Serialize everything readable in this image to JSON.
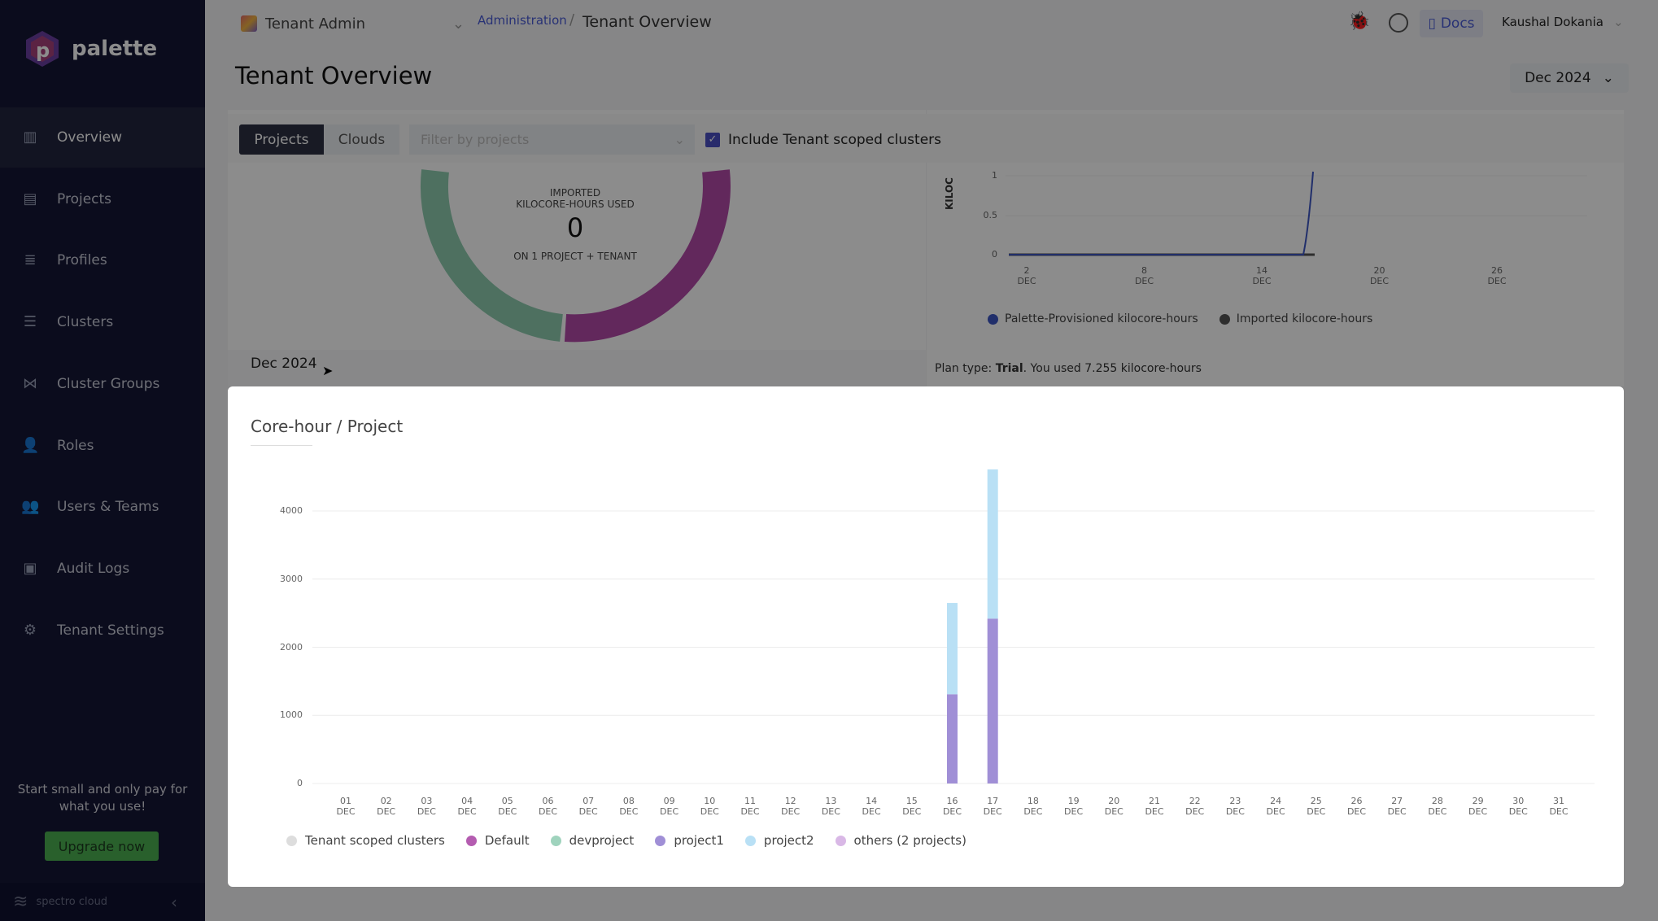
{
  "app": {
    "name": "palette",
    "footer_brand": "spectro cloud"
  },
  "sidebar": {
    "items": [
      {
        "label": "Overview",
        "icon": "chart-icon",
        "active": true
      },
      {
        "label": "Projects",
        "icon": "projects-icon"
      },
      {
        "label": "Profiles",
        "icon": "database-icon"
      },
      {
        "label": "Clusters",
        "icon": "list-icon"
      },
      {
        "label": "Cluster Groups",
        "icon": "network-icon"
      },
      {
        "label": "Roles",
        "icon": "roles-icon"
      },
      {
        "label": "Users & Teams",
        "icon": "users-icon"
      },
      {
        "label": "Audit Logs",
        "icon": "audit-icon"
      },
      {
        "label": "Tenant Settings",
        "icon": "gear-icon"
      }
    ],
    "promo": "Start small and only pay for what you use!",
    "upgrade_label": "Upgrade now"
  },
  "header": {
    "scope": "Tenant Admin",
    "breadcrumb": [
      "Administration",
      "Tenant Overview"
    ],
    "docs": "Docs",
    "user": "Kaushal Dokania"
  },
  "page": {
    "title": "Tenant Overview",
    "date_selector": "Dec 2024"
  },
  "toolbar": {
    "tabs": [
      "Projects",
      "Clouds"
    ],
    "active_tab": "Projects",
    "filter_placeholder": "Filter by projects",
    "include_tenant_label": "Include Tenant scoped clusters",
    "include_tenant_checked": true
  },
  "usage": {
    "imported_label_1": "IMPORTED",
    "imported_label_2": "KILOCORE-HOURS USED",
    "imported_value": "0",
    "scope": "ON 1 PROJECT + TENANT",
    "period": "Dec 2024"
  },
  "kilocore_chart": {
    "ylabel": "KILOC",
    "y_ticks": [
      "1",
      "0.5",
      "0"
    ],
    "x_ticks": [
      [
        "2",
        "DEC"
      ],
      [
        "8",
        "DEC"
      ],
      [
        "14",
        "DEC"
      ],
      [
        "20",
        "DEC"
      ],
      [
        "26",
        "DEC"
      ]
    ],
    "legend": [
      {
        "name": "Palette-Provisioned kilocore-hours",
        "color": "#3d56c4"
      },
      {
        "name": "Imported kilocore-hours",
        "color": "#555555"
      }
    ],
    "plan_prefix": "Plan type: ",
    "plan_type": "Trial",
    "plan_suffix": ". You used 7.255 kilocore-hours"
  },
  "chart_data": {
    "type": "bar",
    "stacked": true,
    "title": "Core-hour / Project",
    "categories": [
      "01",
      "02",
      "03",
      "04",
      "05",
      "06",
      "07",
      "08",
      "09",
      "10",
      "11",
      "12",
      "13",
      "14",
      "15",
      "16",
      "17",
      "18",
      "19",
      "20",
      "21",
      "22",
      "23",
      "24",
      "25",
      "26",
      "27",
      "28",
      "29",
      "30",
      "31"
    ],
    "category_sublabel": "DEC",
    "y_ticks": [
      "0",
      "1000",
      "2000",
      "3000",
      "4000"
    ],
    "ylim": [
      0,
      4700
    ],
    "grid": true,
    "legend_position": "bottom-left",
    "series": [
      {
        "name": "Tenant scoped clusters",
        "color": "#dddddd",
        "values": [
          0,
          0,
          0,
          0,
          0,
          0,
          0,
          0,
          0,
          0,
          0,
          0,
          0,
          0,
          0,
          0,
          0,
          0,
          0,
          0,
          0,
          0,
          0,
          0,
          0,
          0,
          0,
          0,
          0,
          0,
          0
        ]
      },
      {
        "name": "Default",
        "color": "#b45cb0",
        "values": [
          0,
          0,
          0,
          0,
          0,
          0,
          0,
          0,
          0,
          0,
          0,
          0,
          0,
          0,
          0,
          0,
          0,
          0,
          0,
          0,
          0,
          0,
          0,
          0,
          0,
          0,
          0,
          0,
          0,
          0,
          0
        ]
      },
      {
        "name": "devproject",
        "color": "#9fd3bd",
        "values": [
          0,
          0,
          0,
          0,
          0,
          0,
          0,
          0,
          0,
          0,
          0,
          0,
          0,
          0,
          0,
          0,
          0,
          0,
          0,
          0,
          0,
          0,
          0,
          0,
          0,
          0,
          0,
          0,
          0,
          0,
          0
        ]
      },
      {
        "name": "project1",
        "color": "#a08fd6",
        "values": [
          0,
          0,
          0,
          0,
          0,
          0,
          0,
          0,
          0,
          0,
          0,
          0,
          0,
          0,
          0,
          1310,
          2420,
          0,
          0,
          0,
          0,
          0,
          0,
          0,
          0,
          0,
          0,
          0,
          0,
          0,
          0
        ]
      },
      {
        "name": "project2",
        "color": "#b9e0f5",
        "values": [
          0,
          0,
          0,
          0,
          0,
          0,
          0,
          0,
          0,
          0,
          0,
          0,
          0,
          0,
          0,
          1340,
          2190,
          0,
          0,
          0,
          0,
          0,
          0,
          0,
          0,
          0,
          0,
          0,
          0,
          0,
          0
        ]
      },
      {
        "name": "others (2 projects)",
        "color": "#d9b8e6",
        "values": [
          0,
          0,
          0,
          0,
          0,
          0,
          0,
          0,
          0,
          0,
          0,
          0,
          0,
          0,
          0,
          0,
          0,
          0,
          0,
          0,
          0,
          0,
          0,
          0,
          0,
          0,
          0,
          0,
          0,
          0,
          0
        ]
      }
    ]
  }
}
